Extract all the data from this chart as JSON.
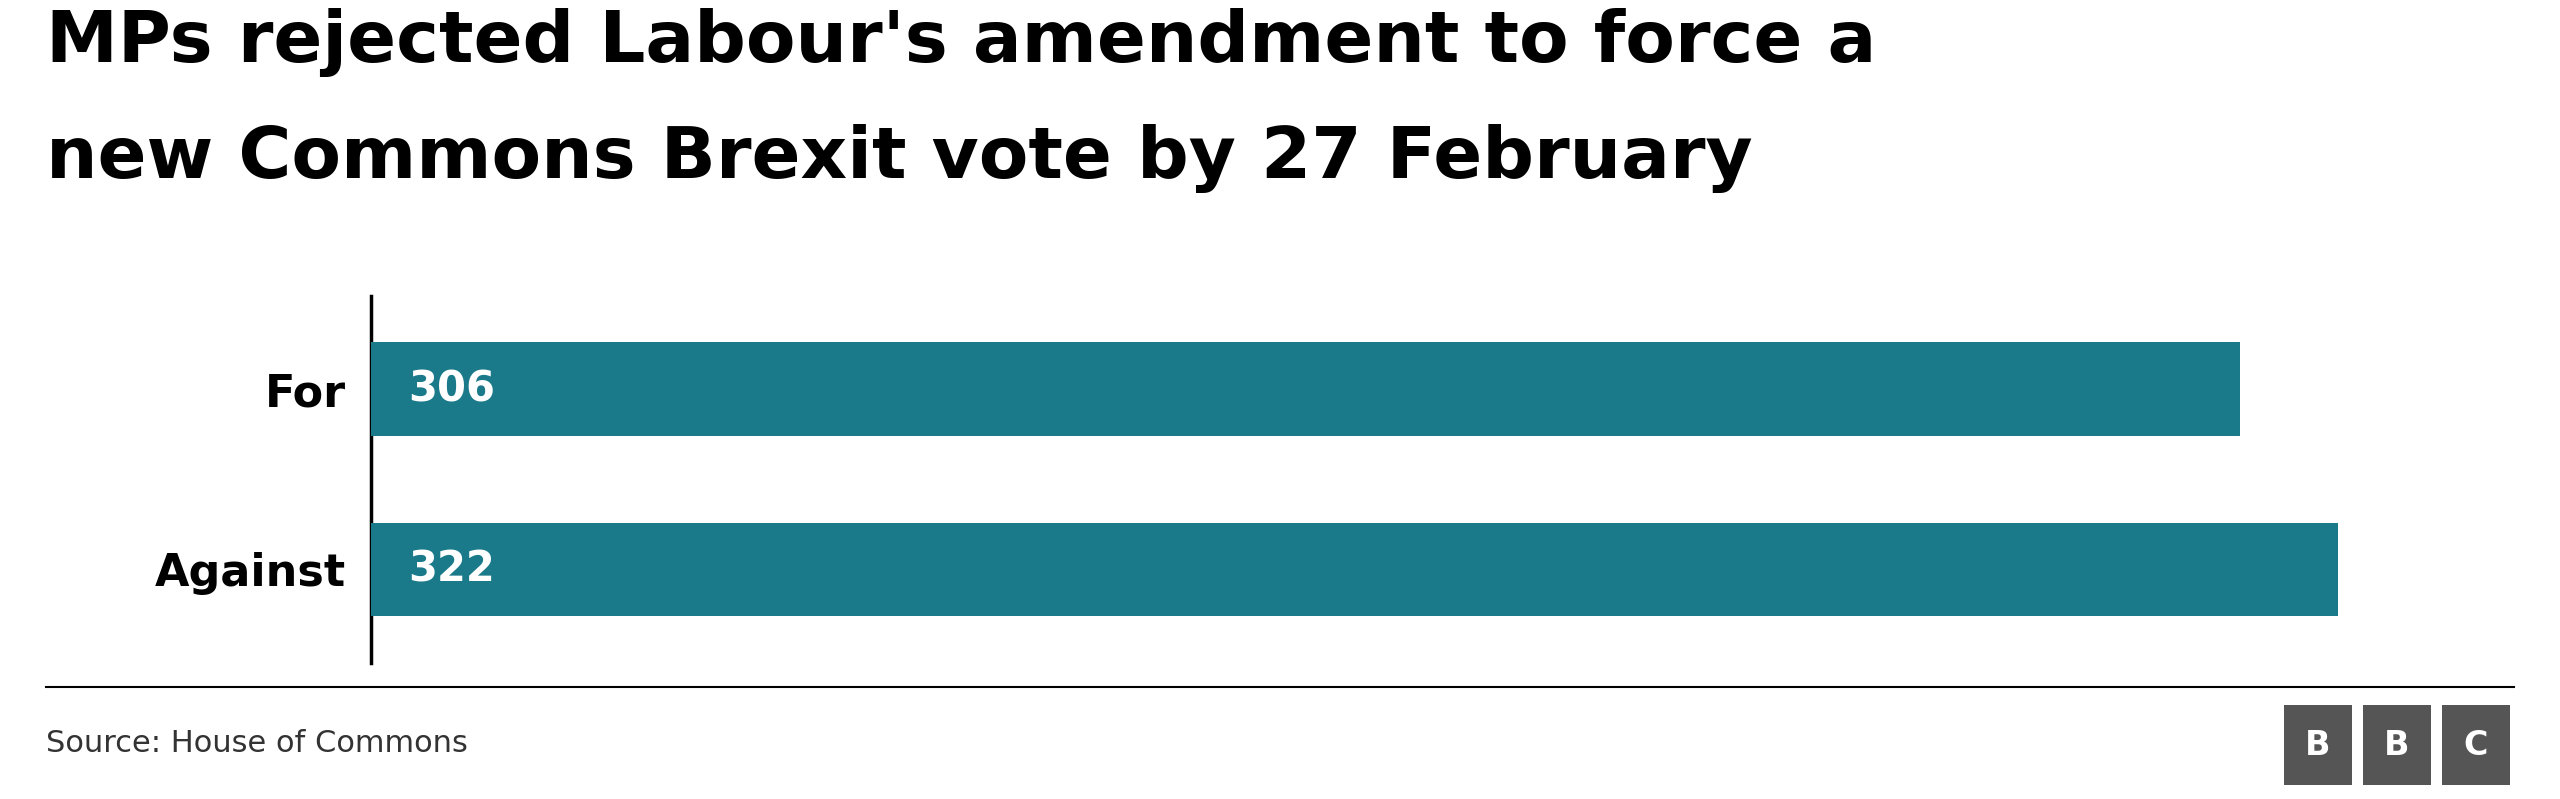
{
  "title_line1": "MPs rejected Labour's amendment to force a",
  "title_line2": "new Commons Brexit vote by 27 February",
  "categories": [
    "For",
    "Against"
  ],
  "values": [
    306,
    322
  ],
  "bar_color": "#1a7a8a",
  "value_labels": [
    "306",
    "322"
  ],
  "source": "Source: House of Commons",
  "bg_color": "#ffffff",
  "title_fontsize": 52,
  "label_fontsize": 32,
  "value_fontsize": 30,
  "source_fontsize": 22,
  "bbc_gray": "#555555",
  "xlim_max": 350,
  "bar_height": 0.52,
  "spine_color": "#000000",
  "label_color": "#000000",
  "source_color": "#333333"
}
